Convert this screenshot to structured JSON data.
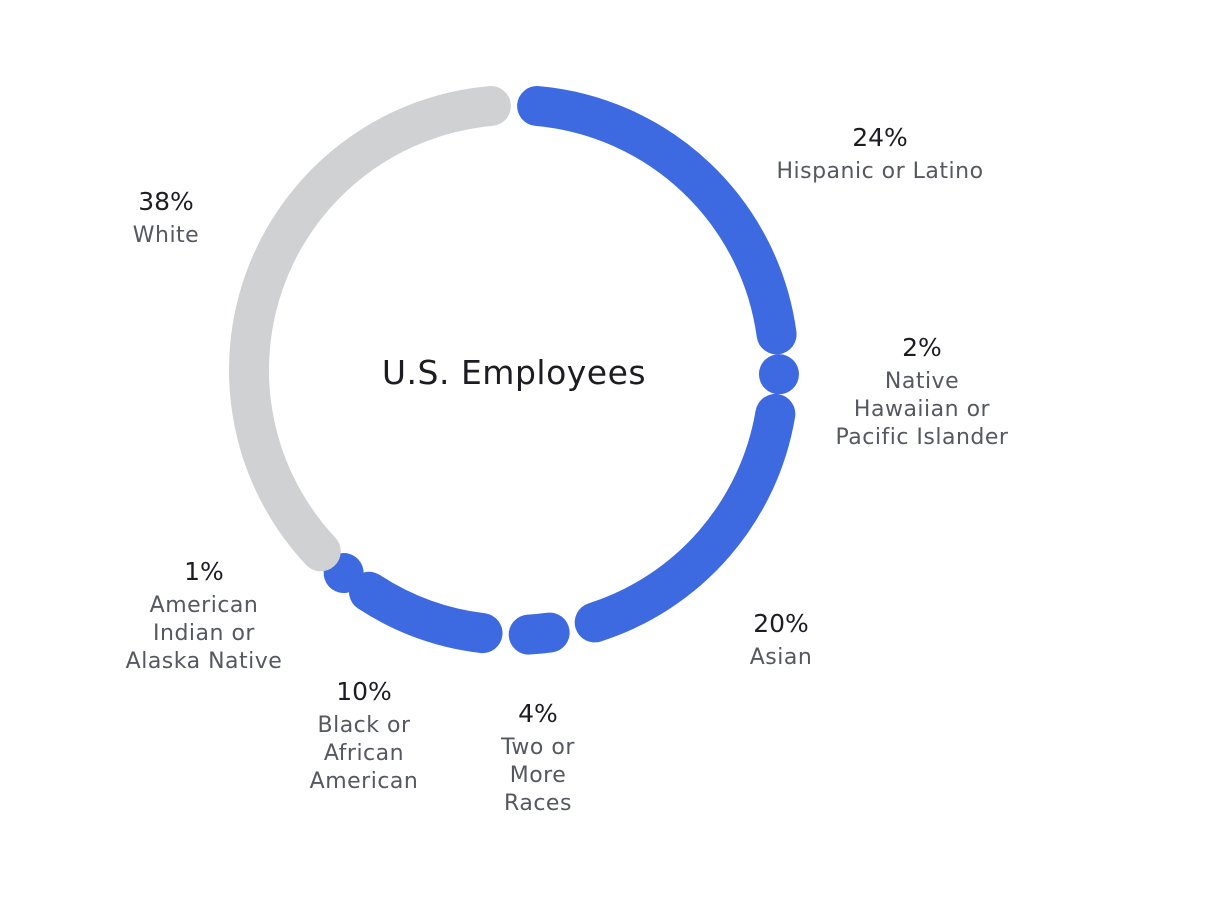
{
  "chart_data": {
    "type": "donut",
    "title": "U.S. Employees",
    "colors": {
      "accent": "#3e6ae1",
      "muted": "#d0d1d2",
      "percent_text": "#1c1c22",
      "label_text": "#555860"
    },
    "slices": [
      {
        "value": 24,
        "value_label": "24%",
        "label": "Hispanic or Latino",
        "label_lines": [
          "Hispanic or Latino"
        ],
        "color": "#3e6ae1"
      },
      {
        "value": 2,
        "value_label": "2%",
        "label": "Native Hawaiian or Pacific Islander",
        "label_lines": [
          "Native",
          "Hawaiian or",
          "Pacific Islander"
        ],
        "color": "#3e6ae1"
      },
      {
        "value": 20,
        "value_label": "20%",
        "label": "Asian",
        "label_lines": [
          "Asian"
        ],
        "color": "#3e6ae1"
      },
      {
        "value": 4,
        "value_label": "4%",
        "label": "Two or More Races",
        "label_lines": [
          "Two or",
          "More",
          "Races"
        ],
        "color": "#3e6ae1"
      },
      {
        "value": 10,
        "value_label": "10%",
        "label": "Black or African American",
        "label_lines": [
          "Black or",
          "African",
          "American"
        ],
        "color": "#3e6ae1"
      },
      {
        "value": 1,
        "value_label": "1%",
        "label": "American Indian or Alaska Native",
        "label_lines": [
          "American",
          "Indian or",
          "Alaska Native"
        ],
        "color": "#3e6ae1"
      },
      {
        "value": 38,
        "value_label": "38%",
        "label": "White",
        "label_lines": [
          "White"
        ],
        "color": "#d0d1d2"
      }
    ]
  }
}
